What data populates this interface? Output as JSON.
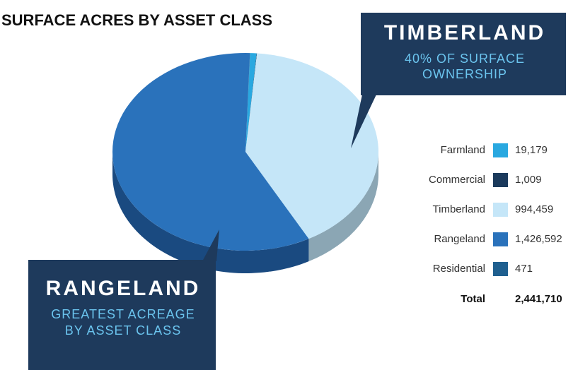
{
  "chart_data": {
    "type": "pie",
    "title": "SURFACE ACRES BY ASSET CLASS",
    "categories": [
      "Farmland",
      "Commercial",
      "Timberland",
      "Rangeland",
      "Residential"
    ],
    "values": [
      19179,
      1009,
      994459,
      1426592,
      471
    ],
    "value_labels": [
      "19,179",
      "1,009",
      "994,459",
      "1,426,592",
      "471"
    ],
    "colors": [
      "#29a8e0",
      "#1b3a5c",
      "#c5e6f8",
      "#2a72bb",
      "#1f5f8f"
    ],
    "total": {
      "label": "Total",
      "value": 2441710,
      "value_label": "2,441,710"
    },
    "callouts": [
      {
        "title": "TIMBERLAND",
        "subtitle_lines": [
          "40% OF SURFACE",
          "OWNERSHIP"
        ]
      },
      {
        "title": "RANGELAND",
        "subtitle_lines": [
          "GREATEST ACREAGE",
          "BY ASSET CLASS"
        ]
      }
    ]
  }
}
